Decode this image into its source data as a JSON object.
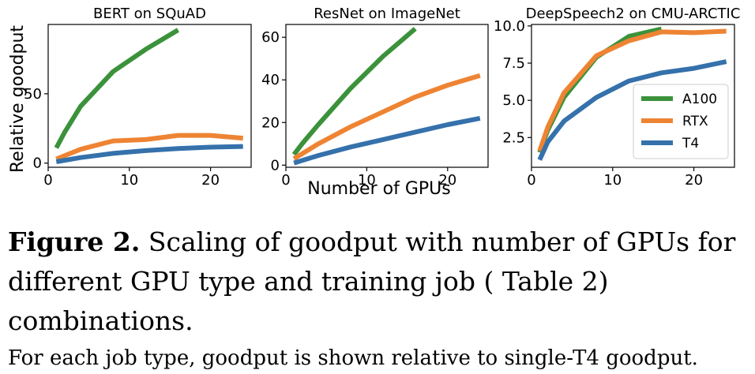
{
  "chart_data": [
    {
      "type": "line",
      "title": "BERT on SQuAD",
      "ylabel": "Relative goodput",
      "xlim": [
        0,
        25
      ],
      "ylim": [
        -3,
        100
      ],
      "xticks": [
        0,
        10,
        20
      ],
      "yticks": [
        0,
        50
      ],
      "series": [
        {
          "name": "A100",
          "color": "#3b923b",
          "x": [
            1,
            2,
            4,
            8,
            12,
            16
          ],
          "y": [
            11,
            22,
            41,
            66,
            82,
            96
          ]
        },
        {
          "name": "RTX",
          "color": "#ee8433",
          "x": [
            1,
            4,
            8,
            12,
            16,
            20,
            24
          ],
          "y": [
            3,
            10,
            16,
            17,
            20,
            20,
            18
          ]
        },
        {
          "name": "T4",
          "color": "#3571ab",
          "x": [
            1,
            4,
            8,
            12,
            16,
            20,
            24
          ],
          "y": [
            1,
            4,
            7,
            9,
            10.5,
            11.5,
            12
          ]
        }
      ]
    },
    {
      "type": "line",
      "title": "ResNet on ImageNet",
      "xlabel": "Number of GPUs",
      "xlim": [
        0,
        25
      ],
      "ylim": [
        -1,
        66
      ],
      "xticks": [
        0,
        10,
        20
      ],
      "yticks": [
        0,
        20,
        40,
        60
      ],
      "series": [
        {
          "name": "A100",
          "color": "#3b923b",
          "x": [
            1,
            2,
            4,
            8,
            12,
            16
          ],
          "y": [
            5,
            10,
            19,
            36,
            51,
            64
          ]
        },
        {
          "name": "RTX",
          "color": "#ee8433",
          "x": [
            1,
            4,
            8,
            12,
            16,
            20,
            24
          ],
          "y": [
            3,
            10,
            18,
            25,
            32,
            37.5,
            42
          ]
        },
        {
          "name": "T4",
          "color": "#3571ab",
          "x": [
            1,
            4,
            8,
            12,
            16,
            20,
            24
          ],
          "y": [
            1,
            4.5,
            8.5,
            12,
            15.5,
            19,
            22
          ]
        }
      ]
    },
    {
      "type": "line",
      "title": "DeepSpeech2 on CMU-ARCTIC",
      "xlim": [
        0,
        25
      ],
      "ylim": [
        0.5,
        10.1
      ],
      "xticks": [
        0,
        10,
        20
      ],
      "yticks": [
        2.5,
        5.0,
        7.5,
        10.0
      ],
      "yticklabels": [
        "2.5",
        "5.0",
        "7.5",
        "10.0"
      ],
      "legend": "lower-right",
      "series": [
        {
          "name": "A100",
          "color": "#3b923b",
          "x": [
            1,
            2,
            4,
            8,
            12,
            16
          ],
          "y": [
            1.5,
            3.0,
            5.2,
            7.9,
            9.3,
            9.8
          ]
        },
        {
          "name": "RTX",
          "color": "#ee8433",
          "x": [
            1,
            2,
            4,
            8,
            12,
            16,
            20,
            24
          ],
          "y": [
            1.6,
            3.2,
            5.5,
            8.0,
            9.0,
            9.6,
            9.55,
            9.65
          ]
        },
        {
          "name": "T4",
          "color": "#3571ab",
          "x": [
            1,
            2,
            4,
            8,
            12,
            16,
            20,
            24
          ],
          "y": [
            1.0,
            2.2,
            3.6,
            5.2,
            6.3,
            6.85,
            7.15,
            7.6
          ]
        }
      ]
    }
  ],
  "caption": {
    "label": "Figure 2.",
    "text": " Scaling of goodput with number of GPUs for different GPU type and training job ( Table 2) combinations.",
    "subtext": "For each job type, goodput is shown relative to single-T4 goodput."
  }
}
